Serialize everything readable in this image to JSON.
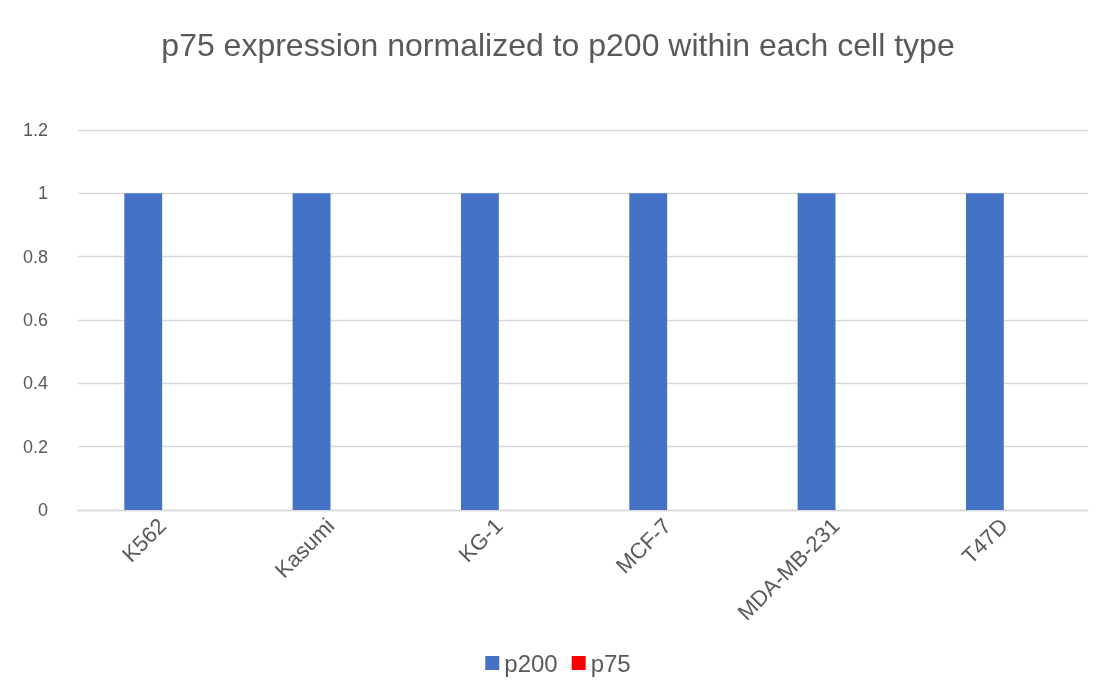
{
  "chart_data": {
    "type": "bar",
    "title": "p75 expression normalized to p200 within each cell type",
    "categories": [
      "K562",
      "Kasumi",
      "KG-1",
      "MCF-7",
      "MDA-MB-231",
      "T47D"
    ],
    "series": [
      {
        "name": "p200",
        "color": "#4472c4",
        "values": [
          1,
          1,
          1,
          1,
          1,
          1
        ]
      },
      {
        "name": "p75",
        "color": "#ff0000",
        "values": [
          0,
          0,
          0,
          0,
          0,
          0
        ]
      }
    ],
    "ylim": [
      0,
      1.2
    ],
    "yticks": [
      0,
      0.2,
      0.4,
      0.6,
      0.8,
      1,
      1.2
    ],
    "grid": "y",
    "legend": "bottom"
  }
}
